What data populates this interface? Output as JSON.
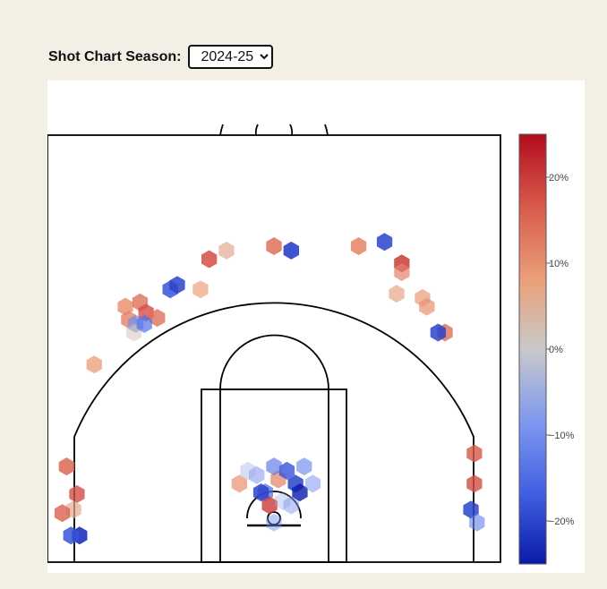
{
  "controls": {
    "label": "Shot Chart Season:",
    "selected_season": "2024-25"
  },
  "chart_data": {
    "type": "hexbin",
    "title": "",
    "colorscale": {
      "name": "coolwarm",
      "min_pct": -25,
      "max_pct": 25,
      "ticks": [
        "20%",
        "10%",
        "0%",
        "−10%",
        "−20%"
      ],
      "tick_values": [
        20,
        10,
        0,
        -10,
        -20
      ],
      "colors": [
        "#0a1aa8",
        "#3f5ee0",
        "#7f98f0",
        "#c9c9c9",
        "#eba07a",
        "#d85b4c",
        "#b30c1e"
      ]
    },
    "bins": [
      {
        "x": -240,
        "y": 60,
        "v": 15,
        "o": 0.85
      },
      {
        "x": -228,
        "y": 28,
        "v": 18,
        "o": 0.8
      },
      {
        "x": -232,
        "y": 10,
        "v": 6,
        "o": 0.7
      },
      {
        "x": -245,
        "y": 6,
        "v": 16,
        "o": 0.8
      },
      {
        "x": -225,
        "y": -20,
        "v": -22,
        "o": 0.9
      },
      {
        "x": -235,
        "y": -20,
        "v": -18,
        "o": 0.85
      },
      {
        "x": 232,
        "y": 75,
        "v": 17,
        "o": 0.8
      },
      {
        "x": 232,
        "y": 40,
        "v": 18,
        "o": 0.8
      },
      {
        "x": 228,
        "y": 10,
        "v": -20,
        "o": 0.85
      },
      {
        "x": 235,
        "y": -5,
        "v": -12,
        "o": 0.6
      },
      {
        "x": -40,
        "y": 40,
        "v": 10,
        "o": 0.7
      },
      {
        "x": -20,
        "y": 50,
        "v": -10,
        "o": 0.5
      },
      {
        "x": -10,
        "y": 30,
        "v": -15,
        "o": 0.7
      },
      {
        "x": 5,
        "y": 45,
        "v": 12,
        "o": 0.7
      },
      {
        "x": 15,
        "y": 55,
        "v": -18,
        "o": 0.8
      },
      {
        "x": 25,
        "y": 40,
        "v": -20,
        "o": 0.85
      },
      {
        "x": 35,
        "y": 60,
        "v": -12,
        "o": 0.6
      },
      {
        "x": -5,
        "y": 15,
        "v": 20,
        "o": 0.8
      },
      {
        "x": 10,
        "y": 20,
        "v": -5,
        "o": 0.4
      },
      {
        "x": 20,
        "y": 15,
        "v": -8,
        "o": 0.5
      },
      {
        "x": 0,
        "y": -5,
        "v": -10,
        "o": 0.45
      },
      {
        "x": -15,
        "y": 30,
        "v": -20,
        "o": 0.85
      },
      {
        "x": 30,
        "y": 30,
        "v": -25,
        "o": 0.8
      },
      {
        "x": 45,
        "y": 40,
        "v": -10,
        "o": 0.5
      },
      {
        "x": -30,
        "y": 55,
        "v": -5,
        "o": 0.4
      },
      {
        "x": 0,
        "y": 60,
        "v": -15,
        "o": 0.6
      },
      {
        "x": -208,
        "y": 178,
        "v": 8,
        "o": 0.8
      },
      {
        "x": -172,
        "y": 245,
        "v": 10,
        "o": 0.85
      },
      {
        "x": -155,
        "y": 250,
        "v": 14,
        "o": 0.8
      },
      {
        "x": -168,
        "y": 230,
        "v": 12,
        "o": 0.8
      },
      {
        "x": -160,
        "y": 225,
        "v": -10,
        "o": 0.7
      },
      {
        "x": -148,
        "y": 238,
        "v": 18,
        "o": 0.8
      },
      {
        "x": -135,
        "y": 232,
        "v": 14,
        "o": 0.8
      },
      {
        "x": -162,
        "y": 215,
        "v": 2,
        "o": 0.5
      },
      {
        "x": -150,
        "y": 225,
        "v": -14,
        "o": 0.7
      },
      {
        "x": -120,
        "y": 265,
        "v": -18,
        "o": 0.85
      },
      {
        "x": -112,
        "y": 270,
        "v": -20,
        "o": 0.85
      },
      {
        "x": -85,
        "y": 265,
        "v": 8,
        "o": 0.7
      },
      {
        "x": -75,
        "y": 300,
        "v": 18,
        "o": 0.85
      },
      {
        "x": -55,
        "y": 310,
        "v": 6,
        "o": 0.7
      },
      {
        "x": 0,
        "y": 315,
        "v": 14,
        "o": 0.85
      },
      {
        "x": 20,
        "y": 310,
        "v": -20,
        "o": 0.9
      },
      {
        "x": 98,
        "y": 315,
        "v": 12,
        "o": 0.85
      },
      {
        "x": 128,
        "y": 320,
        "v": -20,
        "o": 0.85
      },
      {
        "x": 148,
        "y": 295,
        "v": 20,
        "o": 0.85
      },
      {
        "x": 148,
        "y": 285,
        "v": 12,
        "o": 0.7
      },
      {
        "x": 142,
        "y": 260,
        "v": 7,
        "o": 0.7
      },
      {
        "x": 172,
        "y": 255,
        "v": 8,
        "o": 0.75
      },
      {
        "x": 177,
        "y": 245,
        "v": 10,
        "o": 0.7
      },
      {
        "x": 198,
        "y": 215,
        "v": 14,
        "o": 0.8
      },
      {
        "x": 190,
        "y": 215,
        "v": -20,
        "o": 0.85
      }
    ]
  }
}
